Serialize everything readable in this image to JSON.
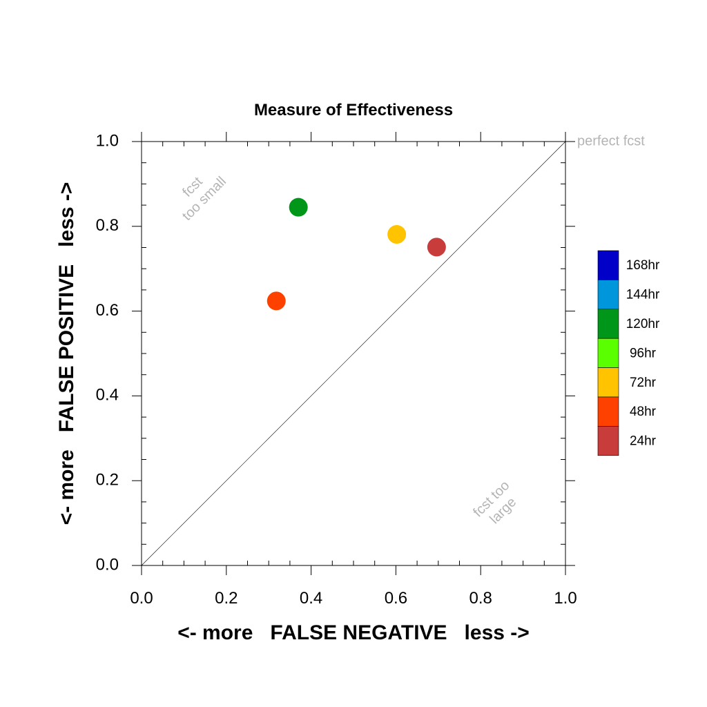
{
  "chart_data": {
    "type": "scatter",
    "title": "Measure of Effectiveness",
    "xlabel": "<- more   FALSE NEGATIVE   less ->",
    "ylabel": "<- more   FALSE POSITIVE   less ->",
    "xlim": [
      0.0,
      1.0
    ],
    "ylim": [
      0.0,
      1.0
    ],
    "x_ticks": [
      "0.0",
      "0.2",
      "0.4",
      "0.6",
      "0.8",
      "1.0"
    ],
    "y_ticks": [
      "0.0",
      "0.2",
      "0.4",
      "0.6",
      "0.8",
      "1.0"
    ],
    "grid": false,
    "diagonal_line": true,
    "annotations": {
      "perfect": "perfect fcst",
      "too_small_line1": "fcst",
      "too_small_line2": "too small",
      "too_large_line1": "fcst too",
      "too_large_line2": "large"
    },
    "legend": [
      {
        "label": "168hr",
        "color": "#0000c8"
      },
      {
        "label": "144hr",
        "color": "#0096dc"
      },
      {
        "label": "120hr",
        "color": "#009619"
      },
      {
        "label": "96hr",
        "color": "#5aff00"
      },
      {
        "label": "72hr",
        "color": "#ffc300"
      },
      {
        "label": "48hr",
        "color": "#ff4100"
      },
      {
        "label": "24hr",
        "color": "#c83c3c"
      }
    ],
    "points": [
      {
        "series": "120hr",
        "x": 0.37,
        "y": 0.845,
        "color": "#009619"
      },
      {
        "series": "72hr",
        "x": 0.602,
        "y": 0.781,
        "color": "#ffc300"
      },
      {
        "series": "24hr",
        "x": 0.696,
        "y": 0.751,
        "color": "#c83c3c"
      },
      {
        "series": "48hr",
        "x": 0.318,
        "y": 0.624,
        "color": "#ff4100"
      }
    ]
  }
}
